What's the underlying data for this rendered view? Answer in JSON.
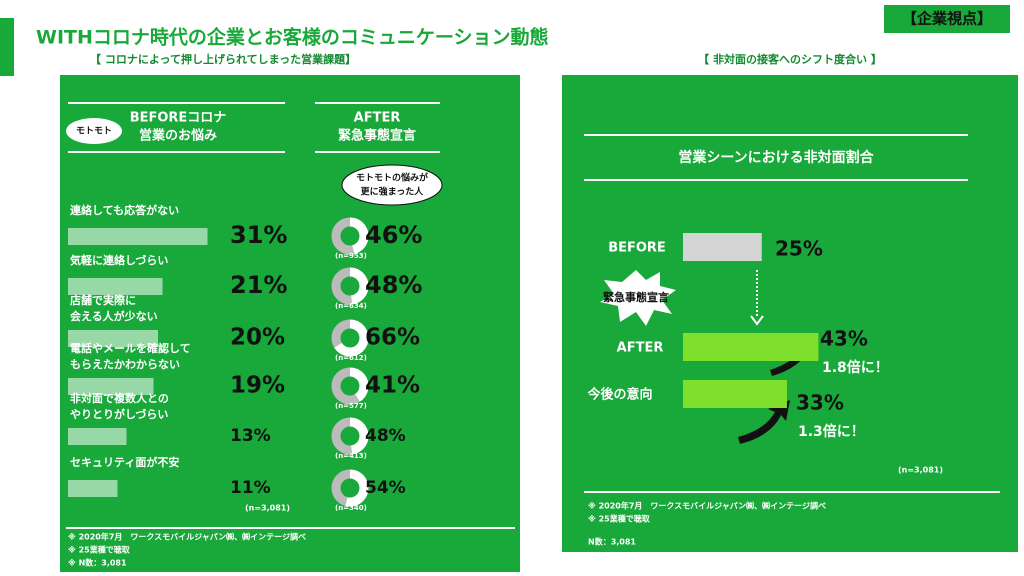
{
  "header": {
    "title": "WITHコロナ時代の企業とお客様のコミュニケーション動態",
    "badge": "【企業視点】"
  },
  "left": {
    "subtitle": "【 コロナによって押し上げられてしまった営業課題】",
    "before_heading": [
      "BEFOREコロナ",
      "営業のお悩み"
    ],
    "before_bubble": "モトモト",
    "after_heading": [
      "AFTER",
      "緊急事態宣言"
    ],
    "after_bubble": [
      "モトモトの悩みが",
      "更に強まった人"
    ],
    "rows": [
      {
        "label": [
          "連絡しても応答がない"
        ],
        "before": 31,
        "before_label": "31%",
        "after": 46,
        "after_label": "46%",
        "n": "(n=953)"
      },
      {
        "label": [
          "気軽に連絡しづらい"
        ],
        "before": 21,
        "before_label": "21%",
        "after": 48,
        "after_label": "48%",
        "n": "(n=634)"
      },
      {
        "label": [
          "店舗で実際に",
          "会える人が少ない"
        ],
        "before": 20,
        "before_label": "20%",
        "after": 66,
        "after_label": "66%",
        "n": "(n=612)"
      },
      {
        "label": [
          "電話やメールを確認して",
          "もらえたかわからない"
        ],
        "before": 19,
        "before_label": "19%",
        "after": 41,
        "after_label": "41%",
        "n": "(n=577)"
      },
      {
        "label": [
          "非対面で複数人との",
          "やりとりがしづらい"
        ],
        "before": 13,
        "before_label": "13%",
        "after": 48,
        "after_label": "48%",
        "n": "(n=413)"
      },
      {
        "label": [
          "セキュリティ面が不安"
        ],
        "before": 11,
        "before_label": "11%",
        "after": 54,
        "after_label": "54%",
        "n": "(n=340)"
      }
    ],
    "n_total": "(n=3,081)",
    "notes": [
      "※ 2020年7月　ワークスモバイルジャパン㈱、㈱インテージ調べ",
      "※ 25業種で聴取",
      "※ N数：3,081"
    ]
  },
  "right": {
    "subtitle": "【 非対面の接客へのシフト度合い 】",
    "panel_title": "営業シーンにおける非対面割合",
    "rows": [
      {
        "label": "BEFORE",
        "value": 25,
        "value_label": "25%"
      },
      {
        "label": "AFTER",
        "value": 43,
        "value_label": "43%",
        "ratio": "1.8倍に！"
      },
      {
        "label": "今後の意向",
        "value": 33,
        "value_label": "33%",
        "ratio": "1.3倍に！"
      }
    ],
    "burst": "緊急事態宣言",
    "n_total": "(n=3,081)",
    "notes": [
      "※ 2020年7月　ワークスモバイルジャパン㈱、㈱インテージ調べ",
      "※ 25業種で聴取"
    ],
    "n_note": "N数：3,081"
  }
}
